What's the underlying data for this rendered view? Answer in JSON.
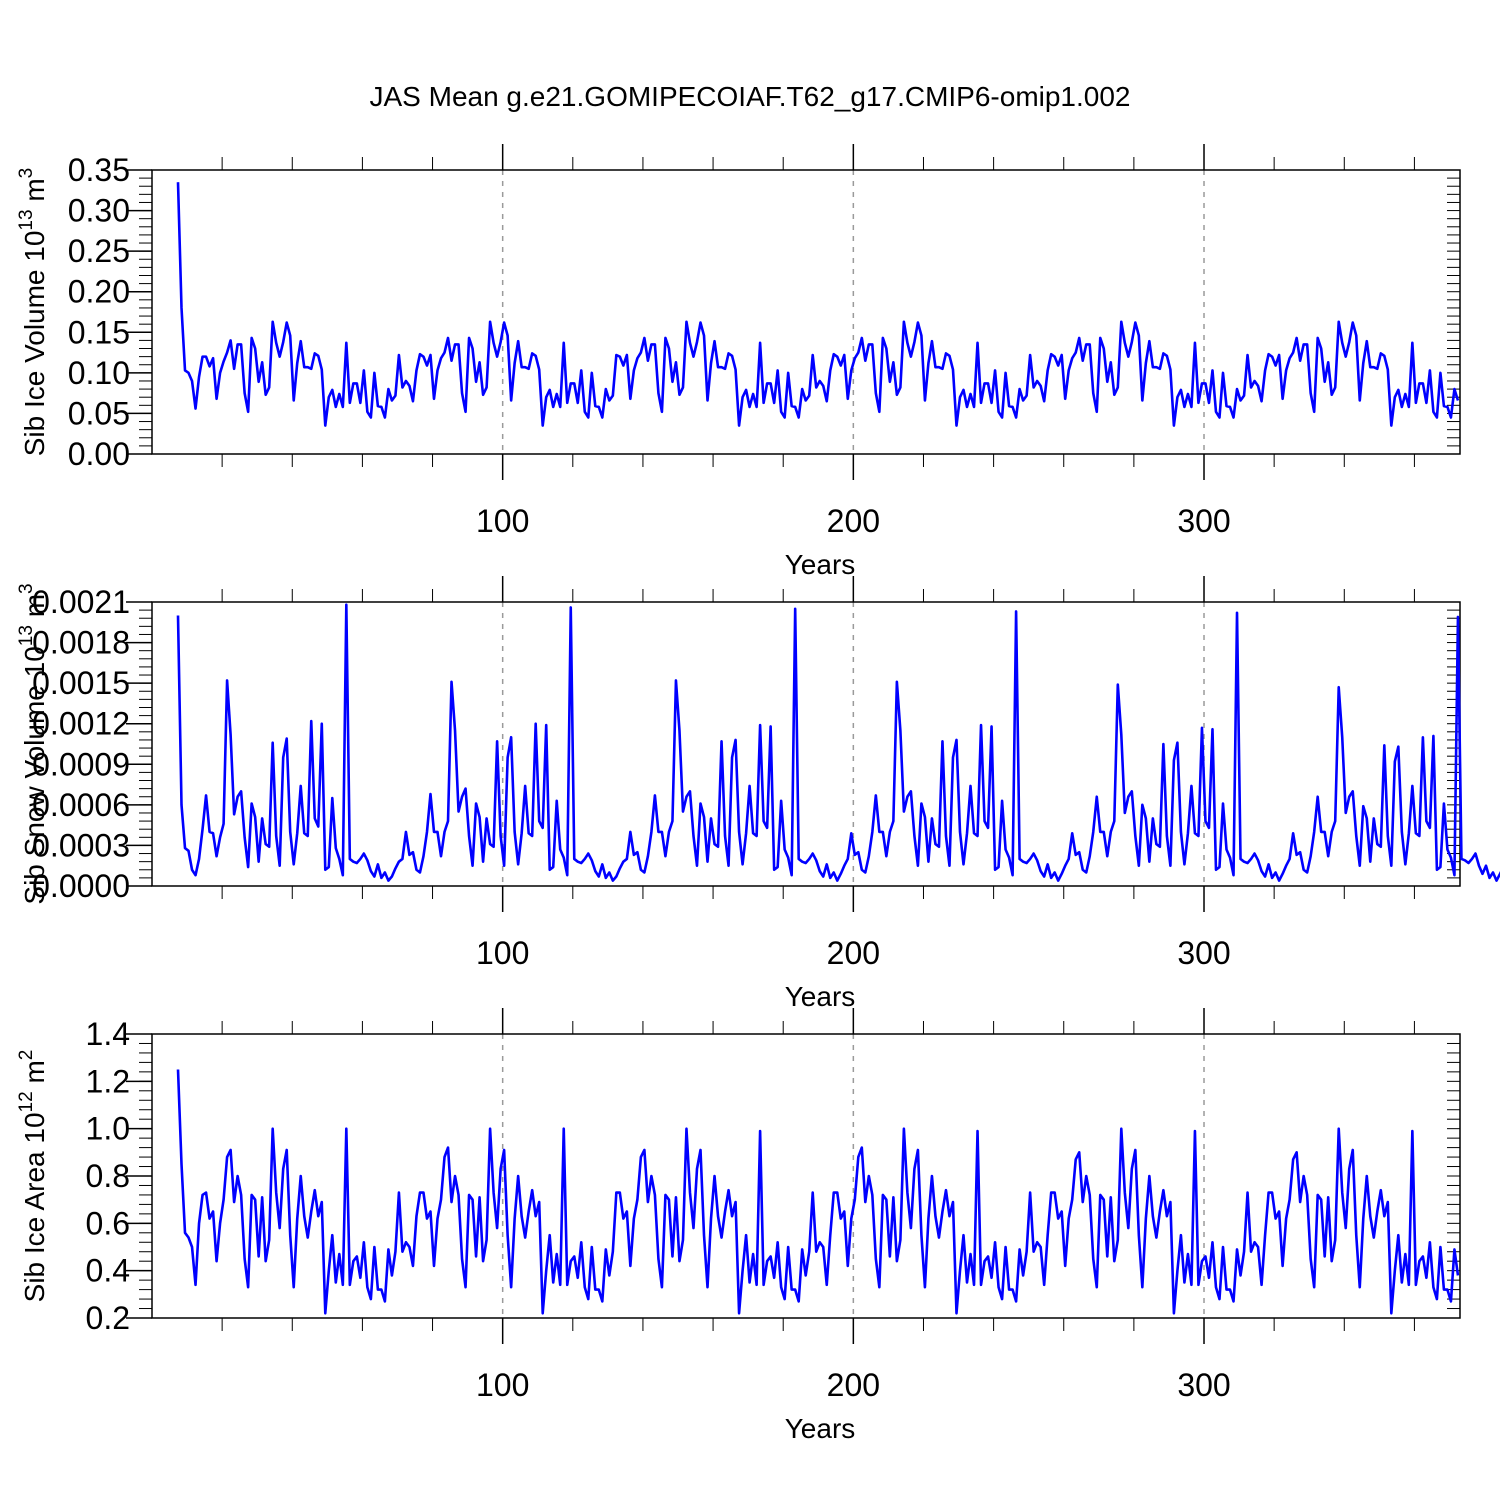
{
  "title": "JAS Mean g.e21.GOMIPECOIAF.T62_g17.CMIP6-omip1.002",
  "colors": {
    "series": "#0000ff",
    "axis": "#000000",
    "grid": "#9a9a9a"
  },
  "chart_data": [
    {
      "type": "line",
      "panel": "top",
      "ylabel": {
        "text": "Sib Ice Volume 10",
        "exp": "13",
        "unit": " m",
        "unit_exp": "3"
      },
      "xlabel": "Years",
      "xlim": [
        0,
        373
      ],
      "ylim": [
        0,
        0.35
      ],
      "ytick_step": 0.05,
      "ytick_minor_step": 0.01,
      "ytick_decimals": 2,
      "xticks": [
        100,
        200,
        300
      ],
      "xtick_labels": [
        "100",
        "200",
        "300"
      ],
      "x_minor_step": 20,
      "vgrid": [
        100,
        200,
        300
      ],
      "x_start": 8,
      "values": [
        0.335,
        0.18,
        0.103,
        0.1,
        0.09,
        0.056,
        0.095,
        0.12,
        0.12,
        0.108,
        0.118,
        0.068,
        0.1,
        0.114,
        0.125,
        0.14,
        0.105,
        0.135,
        0.135,
        0.075,
        0.052,
        0.143,
        0.13,
        0.089,
        0.113,
        0.073,
        0.082,
        0.163,
        0.137,
        0.12,
        0.138,
        0.162,
        0.146,
        0.066,
        0.112,
        0.139,
        0.107,
        0.107,
        0.105,
        0.124,
        0.121,
        0.104,
        0.035,
        0.07,
        0.079,
        0.058,
        0.074,
        0.058,
        0.137,
        0.063,
        0.087,
        0.087,
        0.063,
        0.103,
        0.052,
        0.045,
        0.1,
        0.059,
        0.058,
        0.045,
        0.08,
        0.066,
        0.072,
        0.122,
        0.082,
        0.09,
        0.084,
        0.065,
        0.103,
        0.123,
        0.12,
        0.109,
        0.122,
        0.068,
        0.103,
        0.118,
        0.125,
        0.143,
        0.115,
        0.135,
        0.135,
        0.075,
        0.052,
        0.143,
        0.13,
        0.089,
        0.113,
        0.073,
        0.082,
        0.163,
        0.137,
        0.12,
        0.138,
        0.162,
        0.146,
        0.066,
        0.112,
        0.139,
        0.107,
        0.107,
        0.105,
        0.124,
        0.121,
        0.104,
        0.035,
        0.07,
        0.079,
        0.058,
        0.074,
        0.058,
        0.137,
        0.063,
        0.087,
        0.087,
        0.063,
        0.103,
        0.052,
        0.045,
        0.1,
        0.059,
        0.058,
        0.045,
        0.08,
        0.066,
        0.072,
        0.122,
        0.12,
        0.109,
        0.122,
        0.068,
        0.103,
        0.118,
        0.125,
        0.143,
        0.115,
        0.135,
        0.135,
        0.075,
        0.052,
        0.143,
        0.13,
        0.089,
        0.113,
        0.073,
        0.082,
        0.163,
        0.137,
        0.12,
        0.138,
        0.162,
        0.146,
        0.066,
        0.112,
        0.139,
        0.107,
        0.107,
        0.105,
        0.124,
        0.121,
        0.104,
        0.035,
        0.07,
        0.079,
        0.058,
        0.074,
        0.058,
        0.137,
        0.063,
        0.087,
        0.087,
        0.063,
        0.103,
        0.052,
        0.045,
        0.1,
        0.059,
        0.058,
        0.045,
        0.08,
        0.066,
        0.072,
        0.122,
        0.082,
        0.09,
        0.084,
        0.065,
        0.103,
        0.123,
        0.12,
        0.109,
        0.122,
        0.068,
        0.103,
        0.118,
        0.125,
        0.143,
        0.115,
        0.135,
        0.135,
        0.075,
        0.052,
        0.143,
        0.13,
        0.089,
        0.113,
        0.073,
        0.082,
        0.163,
        0.137,
        0.12,
        0.138,
        0.162,
        0.146,
        0.066,
        0.112,
        0.139,
        0.107,
        0.107,
        0.105,
        0.124,
        0.121,
        0.104,
        0.035,
        0.07,
        0.079,
        0.058,
        0.074,
        0.058,
        0.137,
        0.063,
        0.087,
        0.087,
        0.063,
        0.103,
        0.052,
        0.045,
        0.1,
        0.059,
        0.058,
        0.045,
        0.08,
        0.066,
        0.072,
        0.122,
        0.082,
        0.09,
        0.084,
        0.065,
        0.103,
        0.123,
        0.12,
        0.109,
        0.122,
        0.068,
        0.103,
        0.118,
        0.125,
        0.143,
        0.115,
        0.135,
        0.135,
        0.075,
        0.052,
        0.143,
        0.13,
        0.089,
        0.113,
        0.073,
        0.082,
        0.163,
        0.137,
        0.12,
        0.138,
        0.162,
        0.146,
        0.066,
        0.112,
        0.139,
        0.107,
        0.107,
        0.105,
        0.124,
        0.121,
        0.104,
        0.035,
        0.07,
        0.079,
        0.058,
        0.074,
        0.058,
        0.137,
        0.063,
        0.087,
        0.087,
        0.063,
        0.103,
        0.052,
        0.045,
        0.1,
        0.059,
        0.058,
        0.045,
        0.08,
        0.066,
        0.072,
        0.122,
        0.082,
        0.09,
        0.084,
        0.065,
        0.103,
        0.123,
        0.12,
        0.109,
        0.122,
        0.068,
        0.103,
        0.118,
        0.125,
        0.143,
        0.115,
        0.135,
        0.135,
        0.075,
        0.052,
        0.143,
        0.13,
        0.089,
        0.113,
        0.073,
        0.082,
        0.163,
        0.137,
        0.12,
        0.138,
        0.162,
        0.146,
        0.066,
        0.112,
        0.139,
        0.107,
        0.107,
        0.105,
        0.124,
        0.121,
        0.104,
        0.035,
        0.07,
        0.079,
        0.058,
        0.074,
        0.058,
        0.137,
        0.063,
        0.087,
        0.087,
        0.063,
        0.103,
        0.052,
        0.045,
        0.1,
        0.059,
        0.058,
        0.045,
        0.08,
        0.066
      ]
    },
    {
      "type": "line",
      "panel": "middle",
      "ylabel": {
        "text": "Sib Snow Volume 10",
        "exp": "13",
        "unit": " m",
        "unit_exp": "3"
      },
      "xlabel": "Years",
      "xlim": [
        0,
        373
      ],
      "ylim": [
        0,
        0.0021
      ],
      "ytick_step": 0.0003,
      "ytick_minor_step": 6e-05,
      "ytick_decimals": 4,
      "xticks": [
        100,
        200,
        300
      ],
      "xtick_labels": [
        "100",
        "200",
        "300"
      ],
      "x_minor_step": 20,
      "vgrid": [
        100,
        200,
        300
      ],
      "x_start": 8,
      "values": [
        0.002,
        0.0006,
        0.00028,
        0.00026,
        0.00012,
        8e-05,
        0.0002,
        0.00042,
        0.00067,
        0.0004,
        0.00039,
        0.00022,
        0.00036,
        0.00046,
        0.00152,
        0.00112,
        0.00053,
        0.00066,
        0.0007,
        0.00036,
        0.00014,
        0.00061,
        0.00051,
        0.00018,
        0.0005,
        0.00031,
        0.00029,
        0.00106,
        0.00037,
        0.00015,
        0.00095,
        0.00109,
        0.0004,
        0.00016,
        0.00039,
        0.00074,
        0.00039,
        0.00037,
        0.00122,
        0.0005,
        0.00044,
        0.0012,
        0.00012,
        0.00014,
        0.00065,
        0.00028,
        0.0002,
        8e-05,
        0.00208,
        0.0002,
        0.00018,
        0.00017,
        0.0002,
        0.00024,
        0.00019,
        0.00011,
        7e-05,
        0.00016,
        6e-05,
        0.0001,
        4e-05,
        7e-05,
        0.00013,
        0.00018,
        0.0002,
        0.0004,
        0.00023,
        0.00025,
        0.00012,
        0.0001,
        0.00022,
        0.0004,
        0.00068,
        0.0004,
        0.0004,
        0.00022,
        0.0004,
        0.00048,
        0.00151,
        0.00115,
        0.00055,
        0.00066,
        0.00072,
        0.00037,
        0.00015,
        0.00061,
        0.00051,
        0.00018,
        0.0005,
        0.00031,
        0.00029,
        0.00107,
        0.00037,
        0.00015,
        0.00095,
        0.0011,
        0.0004,
        0.00016,
        0.00039,
        0.00074,
        0.00039,
        0.00037,
        0.0012,
        0.00048,
        0.00043,
        0.00119,
        0.00012,
        0.00014,
        0.00063,
        0.00027,
        0.00021,
        8e-05,
        0.00206,
        0.0002,
        0.00018,
        0.00017,
        0.0002,
        0.00024,
        0.00019,
        0.00011,
        7e-05,
        0.00016,
        6e-05,
        0.0001,
        4e-05,
        7e-05,
        0.00013,
        0.00018,
        0.0002,
        0.0004,
        0.00023,
        0.00025,
        0.00012,
        0.0001,
        0.00022,
        0.0004,
        0.00067,
        0.0004,
        0.0004,
        0.00022,
        0.0004,
        0.00048,
        0.00152,
        0.00115,
        0.00055,
        0.00066,
        0.0007,
        0.00037,
        0.00015,
        0.00061,
        0.00051,
        0.00018,
        0.0005,
        0.00031,
        0.00029,
        0.00107,
        0.00037,
        0.00015,
        0.00095,
        0.00108,
        0.0004,
        0.00016,
        0.00039,
        0.00074,
        0.00039,
        0.00037,
        0.00119,
        0.00048,
        0.00043,
        0.00118,
        0.00012,
        0.00014,
        0.00063,
        0.00027,
        0.00021,
        8e-05,
        0.00205,
        0.0002,
        0.00018,
        0.00017,
        0.0002,
        0.00024,
        0.00019,
        0.00011,
        7e-05,
        0.00016,
        6e-05,
        0.0001,
        4e-05,
        9e-05,
        0.00015,
        0.0002,
        0.00039,
        0.00023,
        0.00025,
        0.00012,
        0.0001,
        0.00022,
        0.0004,
        0.00067,
        0.0004,
        0.0004,
        0.00022,
        0.0004,
        0.00048,
        0.00151,
        0.00115,
        0.00055,
        0.00066,
        0.0007,
        0.00037,
        0.00015,
        0.00061,
        0.00051,
        0.00018,
        0.0005,
        0.00031,
        0.00029,
        0.00107,
        0.00037,
        0.00015,
        0.00095,
        0.00108,
        0.0004,
        0.00016,
        0.00039,
        0.00074,
        0.00039,
        0.00037,
        0.00119,
        0.00048,
        0.00043,
        0.00118,
        0.00012,
        0.00014,
        0.00063,
        0.00027,
        0.00021,
        8e-05,
        0.00203,
        0.0002,
        0.00018,
        0.00017,
        0.0002,
        0.00024,
        0.00019,
        0.00011,
        7e-05,
        0.00016,
        6e-05,
        0.0001,
        4e-05,
        9e-05,
        0.00015,
        0.0002,
        0.00039,
        0.00023,
        0.00025,
        0.00012,
        0.0001,
        0.00022,
        0.0004,
        0.00066,
        0.0004,
        0.0004,
        0.00022,
        0.0004,
        0.00048,
        0.00149,
        0.00112,
        0.00054,
        0.00066,
        0.0007,
        0.00037,
        0.00015,
        0.0006,
        0.0005,
        0.00018,
        0.0005,
        0.00031,
        0.00029,
        0.00105,
        0.00037,
        0.00015,
        0.00093,
        0.00106,
        0.0004,
        0.00016,
        0.00039,
        0.00074,
        0.00039,
        0.00037,
        0.00117,
        0.00048,
        0.00043,
        0.00116,
        0.00012,
        0.00014,
        0.00061,
        0.00027,
        0.00021,
        8e-05,
        0.00202,
        0.0002,
        0.00018,
        0.00017,
        0.0002,
        0.00024,
        0.00019,
        0.00011,
        7e-05,
        0.00016,
        6e-05,
        0.0001,
        4e-05,
        9e-05,
        0.00015,
        0.0002,
        0.00039,
        0.00023,
        0.00025,
        0.00012,
        0.0001,
        0.00022,
        0.0004,
        0.00066,
        0.0004,
        0.0004,
        0.00022,
        0.0004,
        0.00048,
        0.00147,
        0.0011,
        0.00054,
        0.00066,
        0.0007,
        0.00037,
        0.00015,
        0.00059,
        0.0005,
        0.00018,
        0.0005,
        0.00031,
        0.00029,
        0.00104,
        0.00037,
        0.00015,
        0.00092,
        0.00103,
        0.0004,
        0.00016,
        0.00039,
        0.00074,
        0.00039,
        0.00037,
        0.0011,
        0.00048,
        0.00043,
        0.00111,
        0.00012,
        0.00014,
        0.00061,
        0.00027,
        0.00021,
        8e-05,
        0.00199,
        0.0002,
        0.00019,
        0.00017,
        0.0002,
        0.00024,
        0.00015,
        9e-05,
        0.00015,
        6e-05,
        0.0001,
        4e-05,
        9e-05,
        0.00014
      ]
    },
    {
      "type": "line",
      "panel": "bottom",
      "ylabel": {
        "text": "Sib Ice Area 10",
        "exp": "12",
        "unit": " m",
        "unit_exp": "2"
      },
      "xlabel": "Years",
      "xlim": [
        0,
        373
      ],
      "ylim": [
        0.2,
        1.4
      ],
      "ytick_step": 0.2,
      "ytick_minor_step": 0.04,
      "ytick_decimals": 1,
      "xticks": [
        100,
        200,
        300
      ],
      "xtick_labels": [
        "100",
        "200",
        "300"
      ],
      "x_minor_step": 20,
      "vgrid": [
        100,
        200,
        300
      ],
      "x_start": 8,
      "values": [
        1.25,
        0.85,
        0.56,
        0.54,
        0.5,
        0.34,
        0.6,
        0.72,
        0.73,
        0.62,
        0.65,
        0.44,
        0.6,
        0.7,
        0.88,
        0.91,
        0.69,
        0.8,
        0.72,
        0.45,
        0.33,
        0.72,
        0.7,
        0.46,
        0.71,
        0.44,
        0.53,
        1.0,
        0.73,
        0.58,
        0.83,
        0.91,
        0.55,
        0.33,
        0.62,
        0.8,
        0.63,
        0.54,
        0.65,
        0.74,
        0.63,
        0.69,
        0.22,
        0.4,
        0.55,
        0.35,
        0.47,
        0.34,
        1.0,
        0.34,
        0.44,
        0.46,
        0.37,
        0.52,
        0.33,
        0.28,
        0.5,
        0.32,
        0.32,
        0.27,
        0.49,
        0.38,
        0.48,
        0.73,
        0.48,
        0.52,
        0.5,
        0.42,
        0.63,
        0.73,
        0.73,
        0.62,
        0.65,
        0.42,
        0.62,
        0.7,
        0.88,
        0.92,
        0.69,
        0.8,
        0.72,
        0.45,
        0.33,
        0.72,
        0.7,
        0.46,
        0.71,
        0.44,
        0.53,
        1.0,
        0.73,
        0.58,
        0.83,
        0.91,
        0.55,
        0.33,
        0.62,
        0.8,
        0.63,
        0.54,
        0.65,
        0.74,
        0.63,
        0.69,
        0.22,
        0.4,
        0.55,
        0.35,
        0.47,
        0.34,
        1.0,
        0.34,
        0.44,
        0.46,
        0.37,
        0.52,
        0.33,
        0.28,
        0.5,
        0.32,
        0.32,
        0.27,
        0.49,
        0.38,
        0.48,
        0.73,
        0.73,
        0.62,
        0.65,
        0.42,
        0.62,
        0.7,
        0.88,
        0.91,
        0.69,
        0.8,
        0.72,
        0.45,
        0.33,
        0.72,
        0.7,
        0.46,
        0.71,
        0.44,
        0.53,
        1.0,
        0.73,
        0.58,
        0.83,
        0.91,
        0.55,
        0.33,
        0.62,
        0.8,
        0.63,
        0.54,
        0.65,
        0.74,
        0.63,
        0.69,
        0.22,
        0.4,
        0.55,
        0.35,
        0.47,
        0.34,
        0.99,
        0.34,
        0.44,
        0.46,
        0.37,
        0.52,
        0.33,
        0.28,
        0.5,
        0.32,
        0.32,
        0.27,
        0.49,
        0.38,
        0.48,
        0.73,
        0.48,
        0.52,
        0.5,
        0.34,
        0.55,
        0.73,
        0.73,
        0.62,
        0.65,
        0.42,
        0.62,
        0.7,
        0.88,
        0.92,
        0.69,
        0.8,
        0.72,
        0.45,
        0.33,
        0.72,
        0.7,
        0.46,
        0.71,
        0.44,
        0.53,
        1.0,
        0.73,
        0.58,
        0.83,
        0.91,
        0.55,
        0.33,
        0.62,
        0.8,
        0.63,
        0.54,
        0.65,
        0.74,
        0.63,
        0.69,
        0.22,
        0.4,
        0.55,
        0.35,
        0.47,
        0.34,
        0.99,
        0.34,
        0.44,
        0.46,
        0.37,
        0.52,
        0.33,
        0.28,
        0.5,
        0.32,
        0.32,
        0.27,
        0.49,
        0.38,
        0.48,
        0.73,
        0.48,
        0.52,
        0.5,
        0.34,
        0.55,
        0.73,
        0.73,
        0.62,
        0.65,
        0.42,
        0.62,
        0.7,
        0.87,
        0.9,
        0.69,
        0.8,
        0.72,
        0.45,
        0.33,
        0.72,
        0.7,
        0.46,
        0.71,
        0.44,
        0.53,
        1.0,
        0.73,
        0.58,
        0.83,
        0.91,
        0.55,
        0.33,
        0.62,
        0.8,
        0.63,
        0.54,
        0.65,
        0.74,
        0.63,
        0.69,
        0.22,
        0.4,
        0.55,
        0.35,
        0.47,
        0.34,
        0.99,
        0.34,
        0.44,
        0.46,
        0.37,
        0.52,
        0.33,
        0.28,
        0.5,
        0.32,
        0.32,
        0.27,
        0.49,
        0.38,
        0.48,
        0.73,
        0.48,
        0.52,
        0.5,
        0.34,
        0.55,
        0.73,
        0.73,
        0.62,
        0.65,
        0.42,
        0.62,
        0.7,
        0.87,
        0.9,
        0.69,
        0.8,
        0.72,
        0.45,
        0.33,
        0.72,
        0.7,
        0.46,
        0.71,
        0.44,
        0.53,
        1.0,
        0.73,
        0.58,
        0.83,
        0.91,
        0.55,
        0.33,
        0.62,
        0.8,
        0.63,
        0.54,
        0.65,
        0.74,
        0.63,
        0.69,
        0.22,
        0.4,
        0.55,
        0.35,
        0.47,
        0.34,
        0.99,
        0.34,
        0.44,
        0.46,
        0.37,
        0.52,
        0.33,
        0.28,
        0.5,
        0.32,
        0.32,
        0.27,
        0.49,
        0.38
      ]
    }
  ]
}
